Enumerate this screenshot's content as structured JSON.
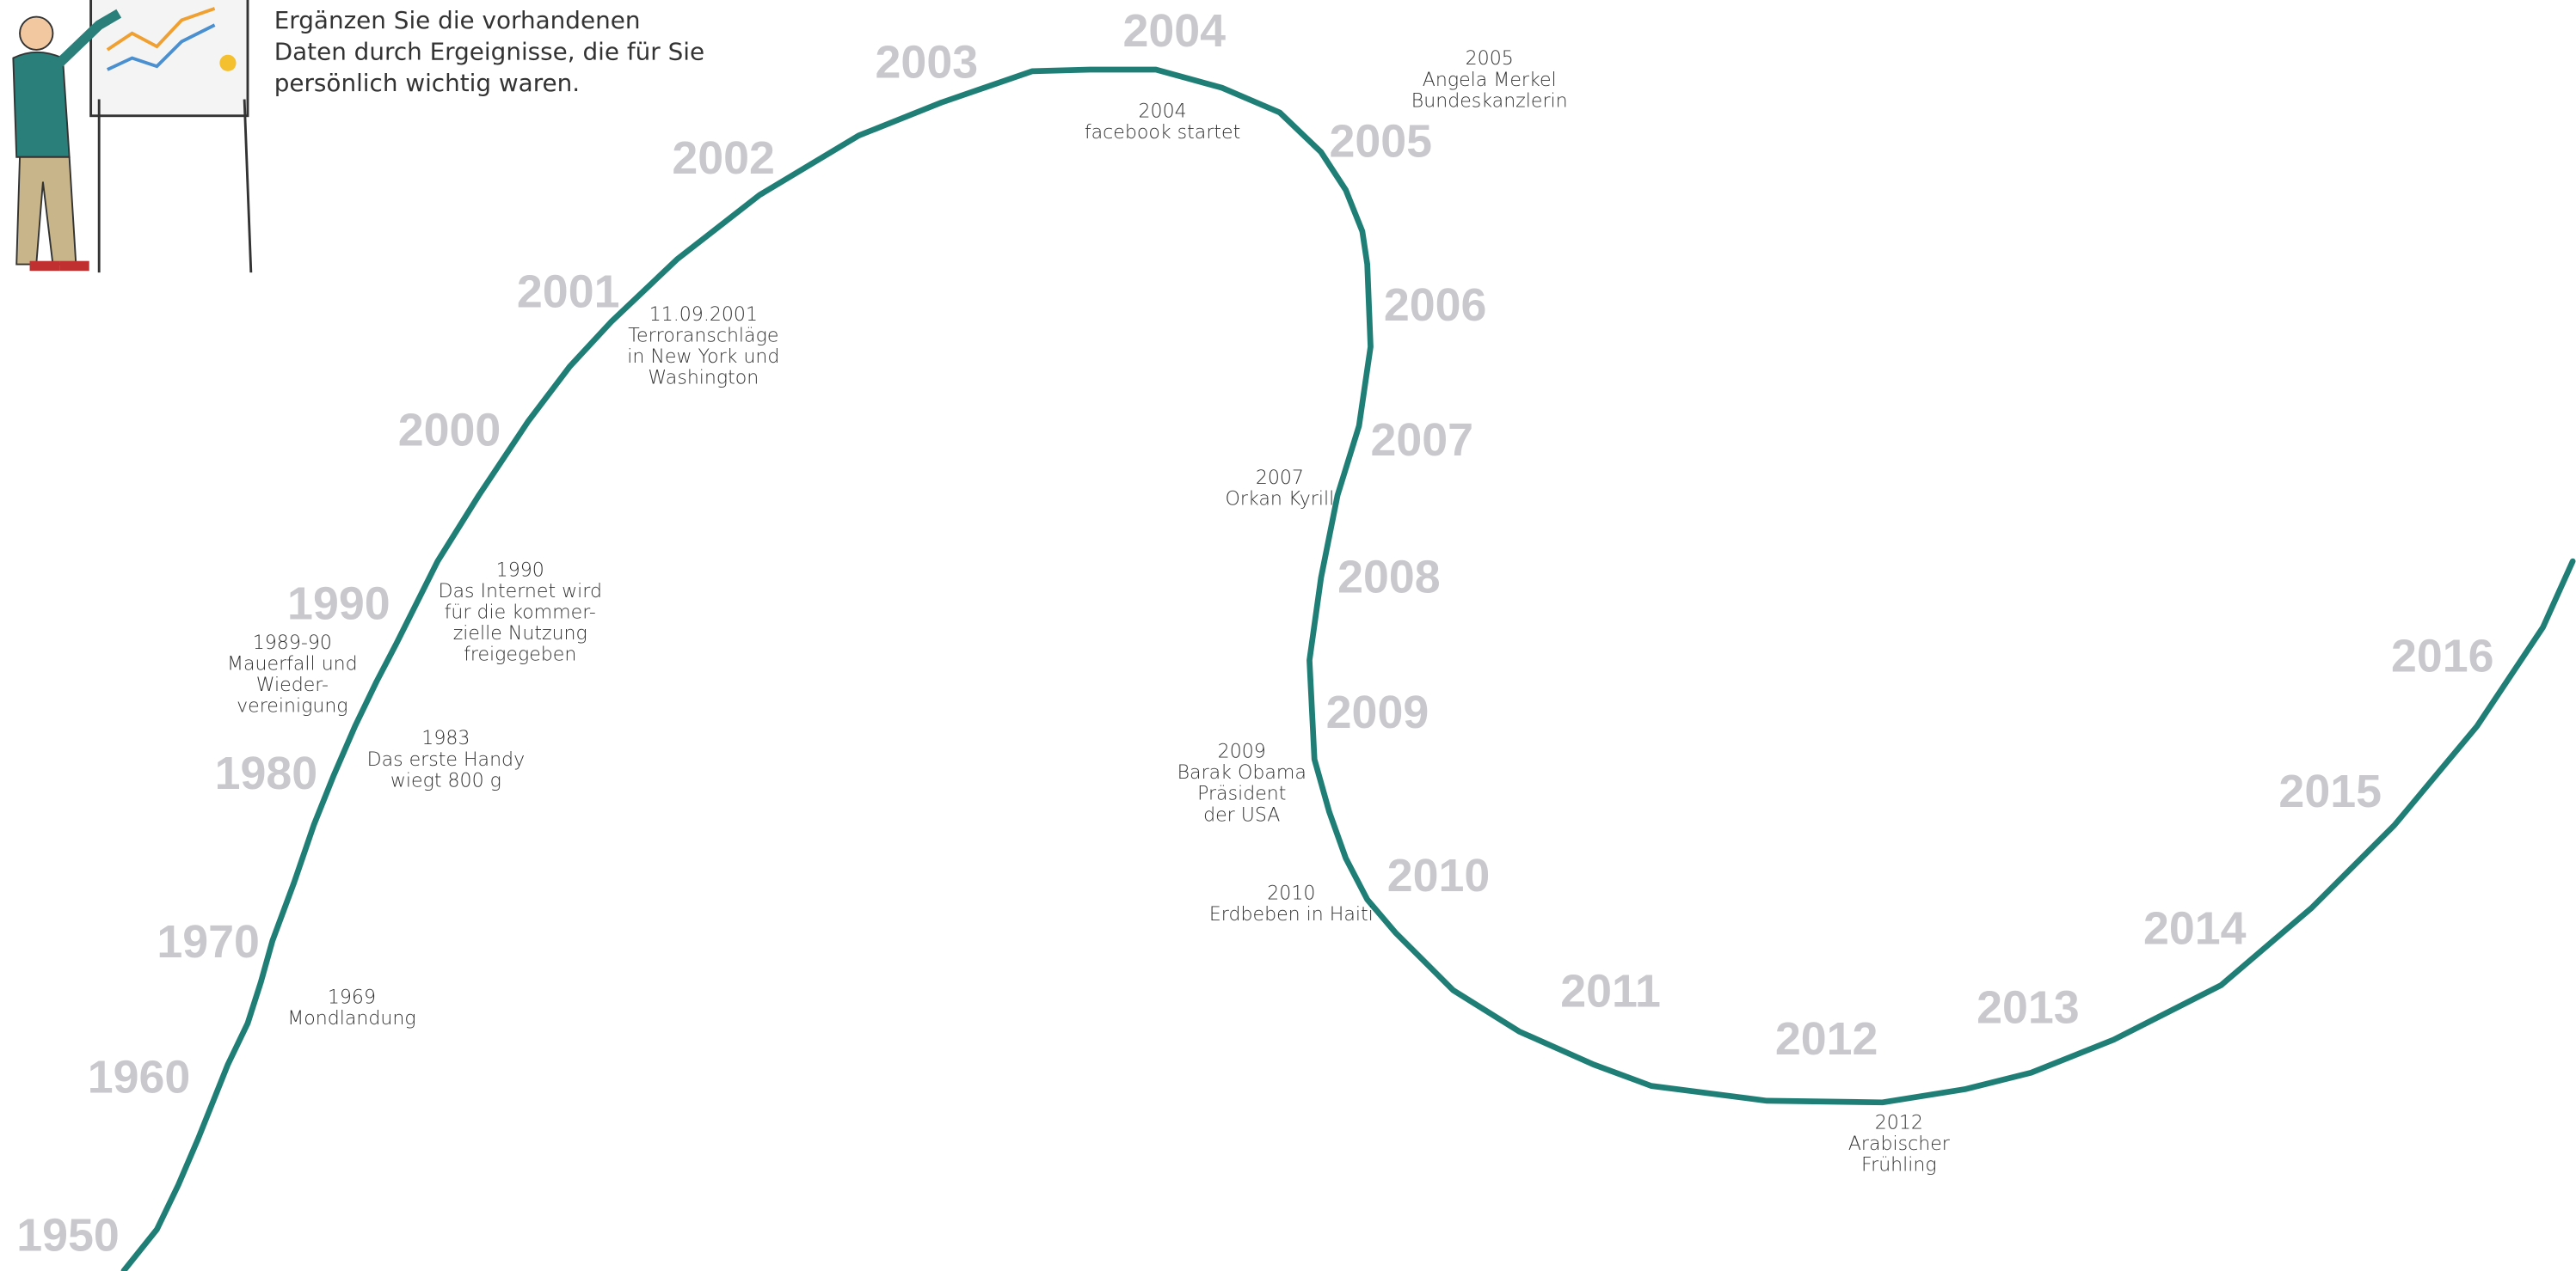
{
  "intro": [
    "Ergänzen Sie die vorhandenen",
    "Daten durch Ergeignisse, die für Sie",
    "persönlich wichtig waren."
  ],
  "years": [
    "1950",
    "1960",
    "1970",
    "1980",
    "1990",
    "2000",
    "2001",
    "2002",
    "2003",
    "2004",
    "2005",
    "2006",
    "2007",
    "2008",
    "2009",
    "2010",
    "2011",
    "2012",
    "2013",
    "2014",
    "2015",
    "2016"
  ],
  "events": [
    {
      "lines": [
        "1969",
        "Mondlandung"
      ]
    },
    {
      "lines": [
        "1983",
        "Das erste Handy",
        "wiegt 800 g"
      ]
    },
    {
      "lines": [
        "1989-90",
        "Mauerfall und",
        "Wieder-",
        "vereinigung"
      ]
    },
    {
      "lines": [
        "1990",
        "Das Internet wird",
        "für die kommer-",
        "zielle Nutzung",
        "freigegeben"
      ]
    },
    {
      "lines": [
        "11.09.2001",
        "Terroranschläge",
        "in New York und",
        "Washington"
      ]
    },
    {
      "lines": [
        "2004",
        "facebook startet"
      ]
    },
    {
      "lines": [
        "2005",
        "Angela Merkel",
        "Bundeskanzlerin"
      ]
    },
    {
      "lines": [
        "2007",
        "Orkan Kyrill"
      ]
    },
    {
      "lines": [
        "2009",
        "Barak Obama",
        "Präsident",
        "der USA"
      ]
    },
    {
      "lines": [
        "2010",
        "Erdbeben in Haiti"
      ]
    },
    {
      "lines": [
        "2012",
        "Arabischer",
        "Frühling"
      ]
    }
  ]
}
